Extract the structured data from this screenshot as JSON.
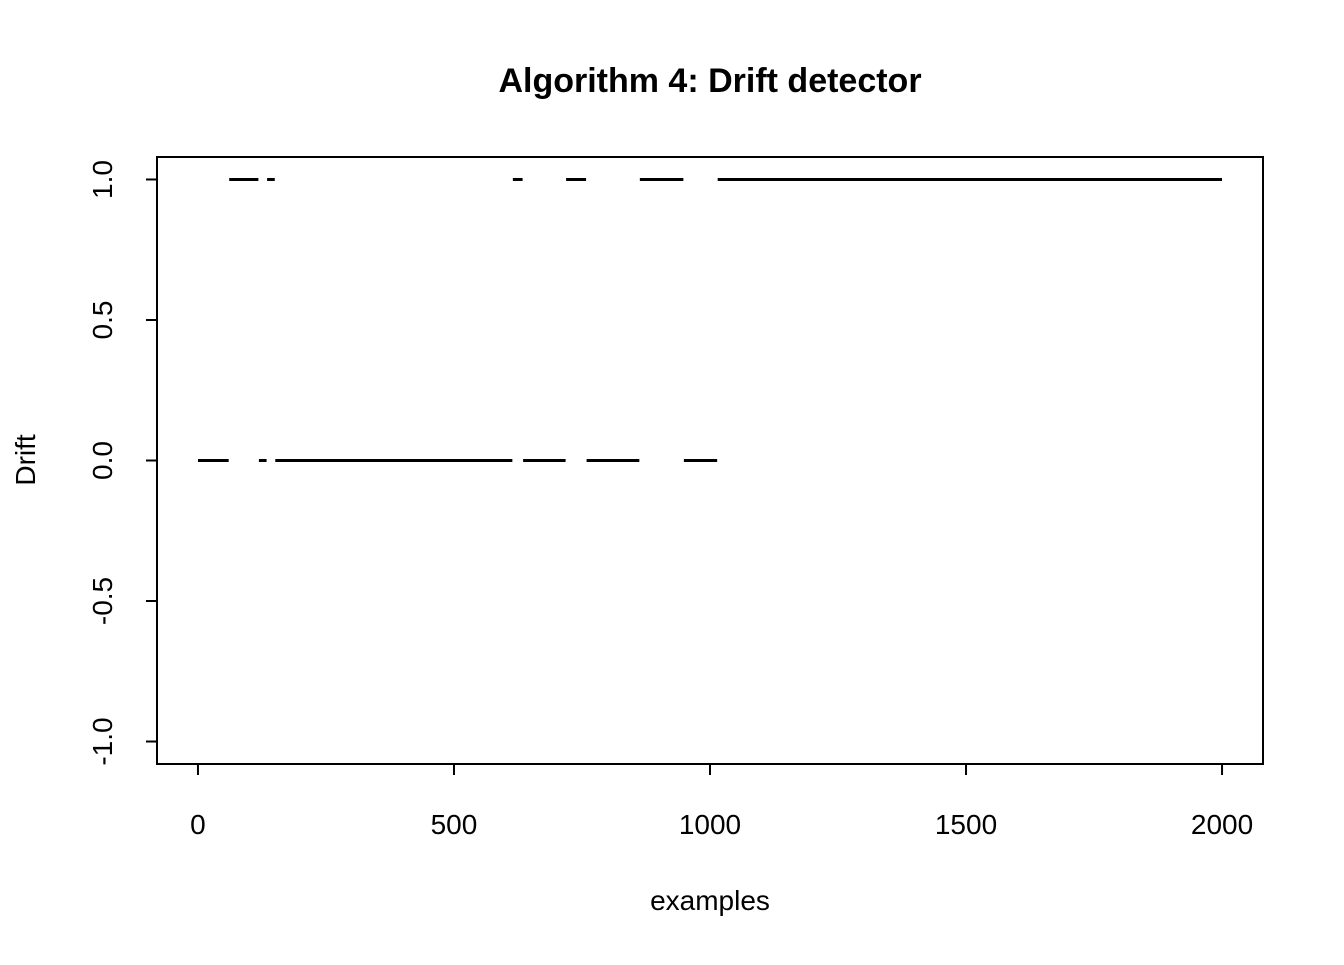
{
  "chart_data": {
    "type": "scatter",
    "title": "Algorithm 4: Drift detector",
    "xlabel": "examples",
    "ylabel": "Drift",
    "xlim": [
      -80,
      2080
    ],
    "ylim": [
      -1.08,
      1.08
    ],
    "x_ticks": [
      {
        "value": 0,
        "label": "0"
      },
      {
        "value": 500,
        "label": "500"
      },
      {
        "value": 1000,
        "label": "1000"
      },
      {
        "value": 1500,
        "label": "1500"
      },
      {
        "value": 2000,
        "label": "2000"
      }
    ],
    "y_ticks": [
      {
        "value": -1.0,
        "label": "-1.0"
      },
      {
        "value": -0.5,
        "label": "-0.5"
      },
      {
        "value": 0.0,
        "label": "0.0"
      },
      {
        "value": 0.5,
        "label": "0.5"
      },
      {
        "value": 1.0,
        "label": "1.0"
      }
    ],
    "grid": false,
    "color": "#000000",
    "runs": [
      {
        "y": 0,
        "x_start": 0,
        "x_end": 60
      },
      {
        "y": 1,
        "x_start": 61,
        "x_end": 118
      },
      {
        "y": 0,
        "x_start": 119,
        "x_end": 134
      },
      {
        "y": 1,
        "x_start": 135,
        "x_end": 150
      },
      {
        "y": 0,
        "x_start": 151,
        "x_end": 614
      },
      {
        "y": 1,
        "x_start": 615,
        "x_end": 634
      },
      {
        "y": 0,
        "x_start": 635,
        "x_end": 718
      },
      {
        "y": 1,
        "x_start": 719,
        "x_end": 758
      },
      {
        "y": 0,
        "x_start": 759,
        "x_end": 862
      },
      {
        "y": 1,
        "x_start": 863,
        "x_end": 948
      },
      {
        "y": 0,
        "x_start": 949,
        "x_end": 1014
      },
      {
        "y": 1,
        "x_start": 1015,
        "x_end": 2000
      }
    ]
  }
}
